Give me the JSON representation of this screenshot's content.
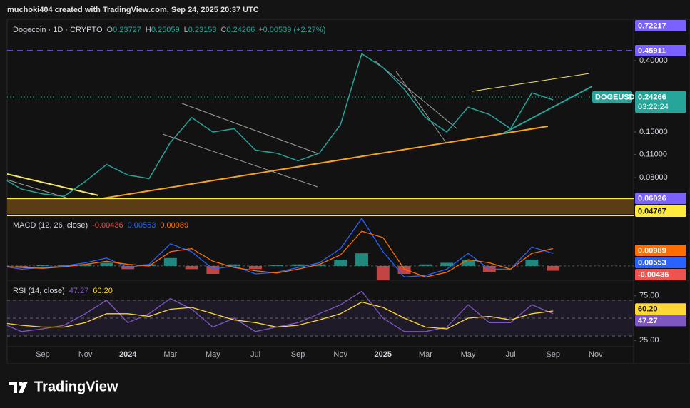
{
  "header": {
    "attribution": "muchoki404 created with TradingView.com, Sep 24, 2025 20:37 UTC"
  },
  "footer": {
    "brand": "TradingView"
  },
  "chart_data": [
    {
      "type": "line",
      "title": "Dogecoin · 1D · CRYPTO",
      "ohlc": [
        {
          "key": "O",
          "value": 0.23727
        },
        {
          "key": "H",
          "value": 0.25059
        },
        {
          "key": "L",
          "value": 0.23153
        },
        {
          "key": "C",
          "value": 0.24266
        }
      ],
      "change": "+0.00539 (+2.27%)",
      "countdown": "03:22:24",
      "categories": [
        null,
        null,
        "Sep",
        null,
        "Nov",
        null,
        "2024",
        null,
        "Mar",
        null,
        "May",
        null,
        "Jul",
        null,
        "Sep",
        null,
        "Nov",
        null,
        "2025",
        null,
        "Mar",
        null,
        "May",
        null,
        "Jul",
        null,
        "Sep",
        null,
        "Nov"
      ],
      "series": [
        {
          "name": "DOGEUSD",
          "color": "#26a69a",
          "values": [
            0.081,
            0.0684,
            0.064,
            0.062,
            0.076,
            0.096,
            0.083,
            0.079,
            0.13,
            0.183,
            0.15,
            0.157,
            0.117,
            0.112,
            0.101,
            0.112,
            0.166,
            0.44,
            0.363,
            0.27,
            0.183,
            0.15,
            0.211,
            0.191,
            0.157,
            0.257,
            0.233,
            null,
            null
          ]
        }
      ],
      "log_scale": true,
      "ylim": [
        0.0486,
        0.686
      ],
      "yticks": [
        {
          "value": 0.4,
          "label": "0.40000"
        },
        {
          "value": 0.15,
          "label": "0.15000"
        },
        {
          "value": 0.11,
          "label": "0.11000"
        },
        {
          "value": 0.08,
          "label": "0.08000"
        }
      ],
      "price_lines": [
        {
          "value": 0.72217,
          "color": "#7b61ff",
          "badge": "#7b61ff",
          "style": "none"
        },
        {
          "value": 0.45911,
          "color": "#7b61ff",
          "badge": "#7b61ff",
          "style": "dashed"
        },
        {
          "value": 0.06026,
          "color": "#ffeb3b",
          "badge": "#7b61ff",
          "style": "solid"
        },
        {
          "value": 0.04767,
          "color": "#ffeb3b",
          "badge": "#ffeb3b",
          "style": "solid"
        }
      ],
      "zone_color": "#5a3d12"
    },
    {
      "type": "macd",
      "title": "MACD (12, 26, close)",
      "ylim": [
        -0.0086,
        0.0315
      ],
      "series": [
        {
          "kind": "histogram",
          "color": "#26a69a",
          "negative_color": "#ef5350",
          "last": -0.00436,
          "values": [
            0.0,
            -0.001,
            0.0005,
            0.0005,
            0.001,
            0.002,
            -0.002,
            0.001,
            0.005,
            -0.002,
            -0.005,
            0.001,
            -0.002,
            0.0005,
            0.001,
            0.001,
            0.004,
            0.008,
            -0.009,
            -0.005,
            0.001,
            0.002,
            0.004,
            -0.004,
            0.0,
            0.004,
            -0.003,
            null,
            null
          ]
        },
        {
          "kind": "line",
          "color": "#2962ff",
          "last": 0.00553,
          "values": [
            0.0,
            -0.002,
            -0.001,
            0.0,
            0.002,
            0.005,
            -0.001,
            0.001,
            0.014,
            0.009,
            -0.002,
            0.0,
            -0.005,
            -0.004,
            -0.001,
            0.002,
            0.011,
            0.03,
            0.009,
            -0.007,
            -0.006,
            -0.002,
            0.008,
            -0.002,
            -0.002,
            0.012,
            0.008,
            null,
            null
          ]
        },
        {
          "kind": "line",
          "color": "#ff6d00",
          "last": 0.00989,
          "values": [
            0.0,
            -0.001,
            -0.0015,
            -0.0005,
            0.001,
            0.003,
            0.001,
            0.0,
            0.009,
            0.011,
            0.003,
            -0.001,
            -0.003,
            -0.0045,
            -0.002,
            0.001,
            0.007,
            0.022,
            0.018,
            -0.002,
            -0.007,
            -0.004,
            0.004,
            0.002,
            -0.002,
            0.008,
            0.011,
            null,
            null
          ]
        }
      ]
    },
    {
      "type": "rsi",
      "title": "RSI (14, close)",
      "ylim": [
        19.6,
        90.8
      ],
      "yticks": [
        {
          "value": 75,
          "label": "75.00"
        },
        {
          "value": 25,
          "label": "25.00"
        }
      ],
      "levels": [
        70,
        50,
        30
      ],
      "series": [
        {
          "color": "#7e57c2",
          "last": 47.27,
          "values": [
            45,
            35,
            38,
            42,
            55,
            70,
            45,
            55,
            72,
            60,
            40,
            50,
            35,
            40,
            45,
            55,
            65,
            80,
            50,
            35,
            35,
            40,
            65,
            45,
            45,
            65,
            55,
            null,
            null
          ]
        },
        {
          "color": "#fdd835",
          "last": {
            "value": 60.2,
            "label": "60.20"
          },
          "values": [
            45,
            42,
            40,
            40,
            45,
            55,
            55,
            52,
            60,
            62,
            55,
            48,
            45,
            40,
            42,
            48,
            55,
            68,
            62,
            50,
            40,
            38,
            50,
            52,
            48,
            55,
            58,
            null,
            null
          ]
        }
      ]
    }
  ]
}
